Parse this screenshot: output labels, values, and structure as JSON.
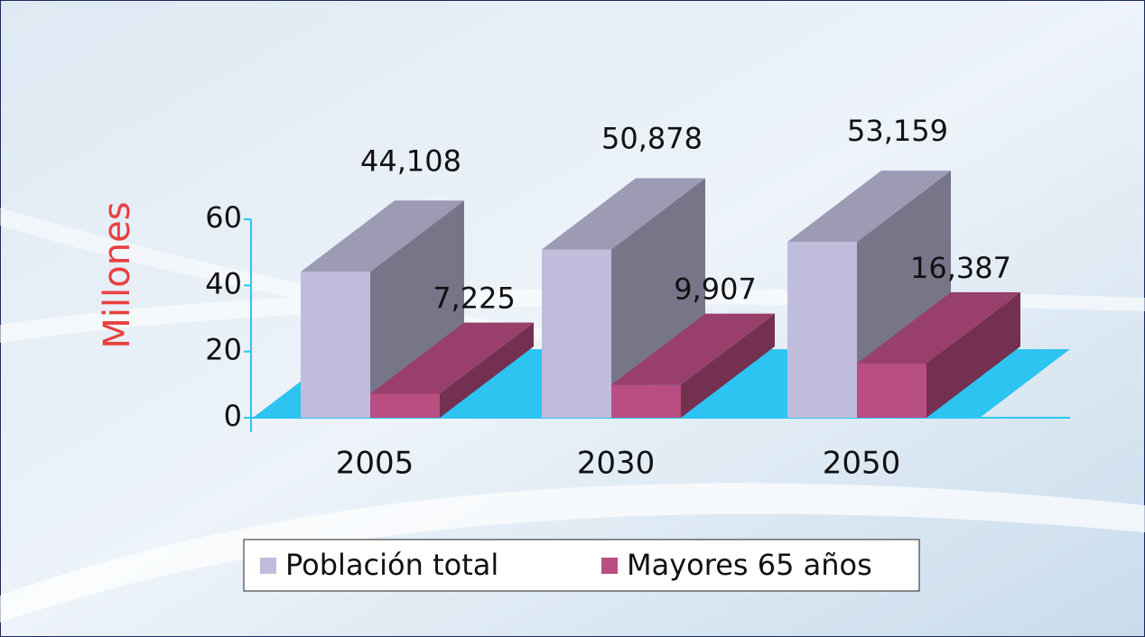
{
  "chart_data": {
    "type": "bar3d",
    "categories": [
      "2005",
      "2030",
      "2050"
    ],
    "series": [
      {
        "name": "Población total",
        "color": "#c0bcdc",
        "values": [
          44.108,
          50.878,
          53.159
        ],
        "value_labels": [
          "44,108",
          "50,878",
          "53,159"
        ]
      },
      {
        "name": "Mayores 65 años",
        "color": "#b94e82",
        "values": [
          7.225,
          9.907,
          16.387
        ],
        "value_labels": [
          "7,225",
          "9,907",
          "16,387"
        ]
      }
    ],
    "ylabel": "Millones",
    "ylim": [
      0,
      60
    ],
    "yticks": [
      0,
      20,
      40,
      60
    ],
    "legend": "bottom"
  }
}
